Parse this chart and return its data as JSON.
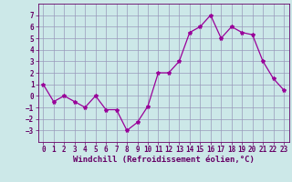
{
  "values": {
    "0": 1.0,
    "1": -0.5,
    "2": 0.0,
    "3": -0.5,
    "4": -1.0,
    "5": 0.0,
    "6": -1.2,
    "7": -1.2,
    "8": -3.0,
    "9": -2.3,
    "10": -0.9,
    "11": 2.0,
    "12": 2.0,
    "13": 3.0,
    "14": 5.5,
    "15": 6.0,
    "16": 7.0,
    "17": 5.0,
    "18": 6.0,
    "19": 5.5,
    "20": 5.3,
    "21": 3.0,
    "22": 1.5,
    "23": 0.5
  },
  "line_color": "#990099",
  "marker": "*",
  "marker_size": 3,
  "background_color": "#cce8e8",
  "grid_color": "#9999bb",
  "xlabel": "Windchill (Refroidissement éolien,°C)",
  "xlabel_fontsize": 6.5,
  "ylim": [
    -4,
    8
  ],
  "xlim": [
    -0.5,
    23.5
  ],
  "yticks": [
    -3,
    -2,
    -1,
    0,
    1,
    2,
    3,
    4,
    5,
    6,
    7
  ],
  "xticks": [
    0,
    1,
    2,
    3,
    4,
    5,
    6,
    7,
    8,
    9,
    10,
    11,
    12,
    13,
    14,
    15,
    16,
    17,
    18,
    19,
    20,
    21,
    22,
    23
  ],
  "tick_fontsize": 5.5,
  "axis_color": "#660066",
  "fig_width": 3.2,
  "fig_height": 2.0,
  "dpi": 100
}
